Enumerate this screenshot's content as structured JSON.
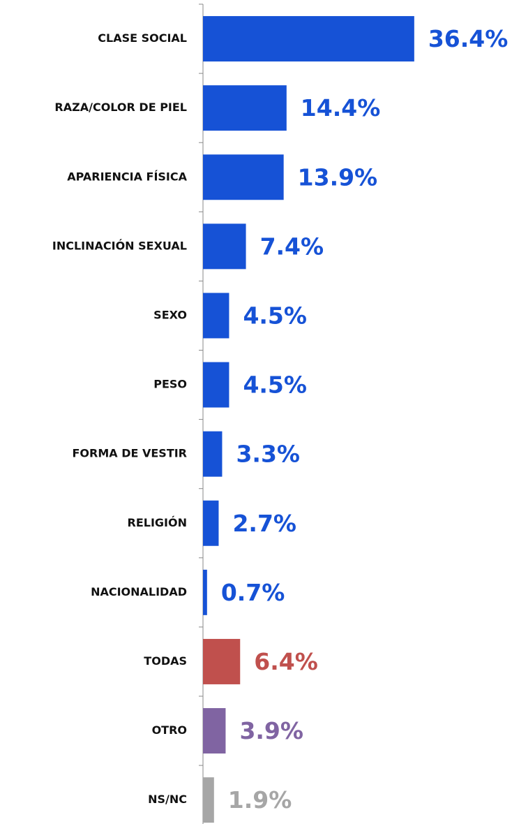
{
  "chart_data": {
    "type": "barh",
    "categories": [
      "CLASE SOCIAL",
      "RAZA/COLOR DE PIEL",
      "APARIENCIA FÍSICA",
      "INCLINACIÓN SEXUAL",
      "SEXO",
      "PESO",
      "FORMA DE VESTIR",
      "RELIGIÓN",
      "NACIONALIDAD",
      "TODAS",
      "OTRO",
      "NS/NC"
    ],
    "values": [
      36.4,
      14.4,
      13.9,
      7.4,
      4.5,
      4.5,
      3.3,
      2.7,
      0.7,
      6.4,
      3.9,
      1.9
    ],
    "value_labels": [
      "36.4%",
      "14.4%",
      "13.9%",
      "7.4%",
      "4.5%",
      "4.5%",
      "3.3%",
      "2.7%",
      "0.7%",
      "6.4%",
      "3.9%",
      "1.9%"
    ],
    "colors": [
      "#1652d6",
      "#1652d6",
      "#1652d6",
      "#1652d6",
      "#1652d6",
      "#1652d6",
      "#1652d6",
      "#1652d6",
      "#1652d6",
      "#c0504d",
      "#8064a2",
      "#a6a6a6"
    ]
  }
}
